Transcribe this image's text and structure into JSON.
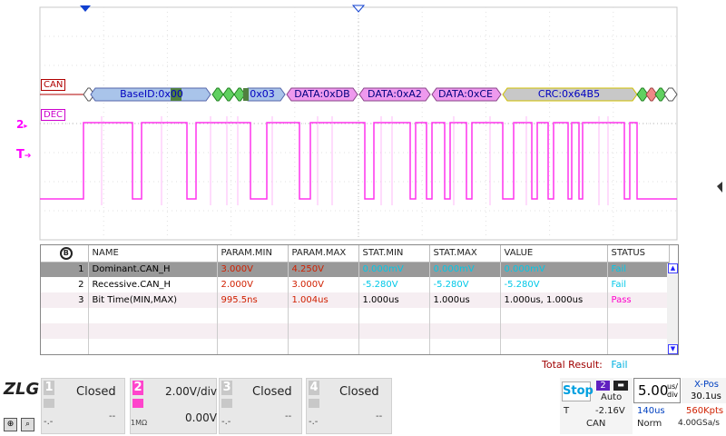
{
  "scope": {
    "ch_label": "CAN",
    "dec_label": "DEC",
    "ch2_marker": "2",
    "trigger_marker": "T",
    "fields": [
      {
        "label": "BaseID:0x00",
        "color": "#a9c4ea",
        "text": "#0000c0"
      },
      {
        "label": "0x03",
        "color": "#a9c4ea",
        "text": "#0000c0"
      },
      {
        "label": "DATA:0xDB",
        "color": "#ee99ee",
        "text": "#000080"
      },
      {
        "label": "DATA:0xA2",
        "color": "#ee99ee",
        "text": "#000080"
      },
      {
        "label": "DATA:0xCE",
        "color": "#ee99ee",
        "text": "#000080"
      },
      {
        "label": "CRC:0x64B5",
        "color": "#c8c8c8",
        "text": "#0000c0"
      }
    ]
  },
  "meas": {
    "headers": [
      "NAME",
      "PARAM.MIN",
      "PARAM.MAX",
      "STAT.MIN",
      "STAT.MAX",
      "VALUE",
      "STATUS"
    ],
    "rows": [
      {
        "idx": "1",
        "name": "Dominant.CAN_H",
        "pmin": "3.000V",
        "pmax": "4.250V",
        "smin": "0.000mV",
        "smax": "0.000mV",
        "value": "0.000mV",
        "status": "Fail"
      },
      {
        "idx": "2",
        "name": "Recessive.CAN_H",
        "pmin": "2.000V",
        "pmax": "3.000V",
        "smin": "-5.280V",
        "smax": "-5.280V",
        "value": "-5.280V",
        "status": "Fail"
      },
      {
        "idx": "3",
        "name": "Bit Time(MIN,MAX)",
        "pmin": "995.5ns",
        "pmax": "1.004us",
        "smin": "1.000us",
        "smax": "1.000us",
        "value": "1.000us, 1.000us",
        "status": "Pass"
      }
    ]
  },
  "total": {
    "label": "Total Result:",
    "value": "Fail"
  },
  "bottom": {
    "logo": "ZLG",
    "ch1": {
      "num": "1",
      "state": "Closed",
      "offset": "--",
      "coupling": "-.-"
    },
    "ch2": {
      "num": "2",
      "state": "2.00V/div",
      "offset": "0.00V",
      "coupling": "1MΩ"
    },
    "ch3": {
      "num": "3",
      "state": "Closed",
      "offset": "--",
      "coupling": "-.-"
    },
    "ch4": {
      "num": "4",
      "state": "Closed",
      "offset": "--",
      "coupling": "-.-"
    },
    "trigger": {
      "stop": "Stop",
      "src": "2",
      "mode": "Auto",
      "t_label": "T",
      "level": "-2.16V",
      "type": "CAN"
    },
    "timebase": {
      "value": "5.00",
      "unit": "us/div",
      "mem": "140us",
      "acq": "Norm"
    },
    "xpos": {
      "label": "X-Pos",
      "value": "30.1us",
      "pts": "560Kpts",
      "rate": "4.00GSa/s"
    }
  }
}
